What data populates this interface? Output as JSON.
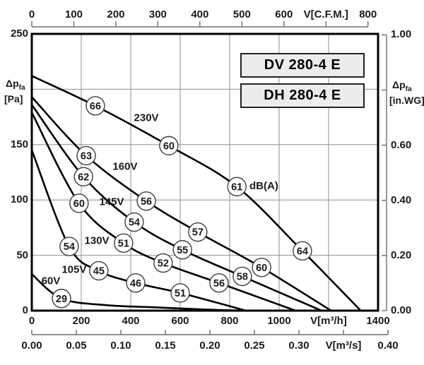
{
  "model_labels": [
    "DV 280-4 E",
    "DH 280-4 E"
  ],
  "colors": {
    "curve": "#000000",
    "grid": "#8f8f8f",
    "ruler": "#6e6e6e",
    "plot_border": "#000000",
    "badge_fill": "#ffffff",
    "badge_stroke": "#3c3c3c",
    "box_fill": "#ececec",
    "text": "#1a1a1a"
  },
  "chart_data": {
    "type": "line",
    "title": "",
    "x_axis_m3h": {
      "label": "V[m³/h]",
      "min": 0,
      "max": 1400,
      "grid_values": [
        200,
        400,
        600,
        800,
        1000,
        1200
      ],
      "ticks": [
        {
          "v": 0,
          "label": "0"
        },
        {
          "v": 200,
          "label": "200"
        },
        {
          "v": 400,
          "label": "400"
        },
        {
          "v": 600,
          "label": "600"
        },
        {
          "v": 800,
          "label": "800"
        },
        {
          "v": 1000,
          "label": "1000"
        },
        {
          "v": 1200,
          "label": "V[m³/h]"
        },
        {
          "v": 1400,
          "label": "1400"
        }
      ]
    },
    "x_axis_cfm": {
      "label": "V[C.F.M.]",
      "factor_to_m3h": 1.699,
      "ticks": [
        {
          "v": 0,
          "label": "0"
        },
        {
          "v": 100,
          "label": "100"
        },
        {
          "v": 200,
          "label": "200"
        },
        {
          "v": 300,
          "label": "300"
        },
        {
          "v": 400,
          "label": "400"
        },
        {
          "v": 500,
          "label": "500"
        },
        {
          "v": 600,
          "label": "600"
        },
        {
          "v": 700,
          "label": "V[C.F.M.]"
        },
        {
          "v": 800,
          "label": "800"
        }
      ]
    },
    "x_axis_m3s": {
      "label": "V[m³/s]",
      "factor_to_m3h": 3600,
      "ticks": [
        {
          "v": 0.0,
          "label": "0.00"
        },
        {
          "v": 0.05,
          "label": "0.05"
        },
        {
          "v": 0.1,
          "label": "0.10"
        },
        {
          "v": 0.15,
          "label": "0.15"
        },
        {
          "v": 0.2,
          "label": "0.20"
        },
        {
          "v": 0.25,
          "label": "0.25"
        },
        {
          "v": 0.3,
          "label": "0.30"
        },
        {
          "v": 0.35,
          "label": "V[m³/s]"
        },
        {
          "v": 0.4,
          "label": "0.40"
        }
      ]
    },
    "y_axis_pa": {
      "min": 0,
      "max": 250,
      "grid_values": [
        50,
        100,
        150,
        200
      ],
      "ticks": [
        {
          "v": 250,
          "label": "250"
        },
        {
          "v": 150,
          "label": "150"
        },
        {
          "v": 100,
          "label": "100"
        },
        {
          "v": 50,
          "label": "50"
        },
        {
          "v": 0,
          "label": "0"
        }
      ],
      "title": {
        "main": "Δp",
        "sub": "fa",
        "unit": "[Pa]",
        "at_value": 200
      }
    },
    "y_axis_inwg": {
      "factor_to_pa": 249.089,
      "ticks": [
        {
          "v": 1.0,
          "label": "1.00"
        },
        {
          "v": 0.8,
          "label": null
        },
        {
          "v": 0.6,
          "label": "0.60"
        },
        {
          "v": 0.4,
          "label": "0.40"
        },
        {
          "v": 0.2,
          "label": "0.20"
        },
        {
          "v": 0.0,
          "label": "0.00"
        }
      ],
      "title": {
        "main": "Δp",
        "sub": "fa",
        "unit": "[in.WG]",
        "at_value": 0.8
      }
    },
    "series": [
      {
        "name": "230V",
        "label_at": [
          463,
          174
        ],
        "points": [
          [
            0,
            212
          ],
          [
            257,
            185
          ],
          [
            554,
            149
          ],
          [
            829,
            112
          ],
          [
            1094,
            54
          ],
          [
            1330,
            0
          ]
        ],
        "db_points": [
          {
            "db": "66",
            "x": 257,
            "y": 185
          },
          {
            "db": "60",
            "x": 554,
            "y": 149
          },
          {
            "db": "61",
            "x": 829,
            "y": 112
          },
          {
            "db": "64",
            "x": 1094,
            "y": 54
          }
        ]
      },
      {
        "name": "160V",
        "label_at": [
          377,
          130
        ],
        "points": [
          [
            0,
            193
          ],
          [
            220,
            140
          ],
          [
            463,
            99
          ],
          [
            671,
            71
          ],
          [
            929,
            39
          ],
          [
            1210,
            0
          ]
        ],
        "db_points": [
          {
            "db": "63",
            "x": 220,
            "y": 140
          },
          {
            "db": "56",
            "x": 463,
            "y": 99
          },
          {
            "db": "57",
            "x": 671,
            "y": 71
          },
          {
            "db": "60",
            "x": 929,
            "y": 39
          }
        ]
      },
      {
        "name": "145V",
        "label_at": [
          323,
          98
        ],
        "points": [
          [
            0,
            186
          ],
          [
            209,
            121
          ],
          [
            414,
            80
          ],
          [
            609,
            55
          ],
          [
            851,
            31
          ],
          [
            1171,
            0
          ]
        ],
        "db_points": [
          {
            "db": "62",
            "x": 209,
            "y": 121
          },
          {
            "db": "54",
            "x": 414,
            "y": 80
          },
          {
            "db": "55",
            "x": 609,
            "y": 55
          },
          {
            "db": "58",
            "x": 851,
            "y": 31
          }
        ]
      },
      {
        "name": "130V",
        "label_at": [
          263,
          63
        ],
        "points": [
          [
            0,
            179
          ],
          [
            191,
            97
          ],
          [
            371,
            61
          ],
          [
            531,
            43
          ],
          [
            757,
            25
          ],
          [
            1066,
            0
          ]
        ],
        "db_points": [
          {
            "db": "60",
            "x": 191,
            "y": 97
          },
          {
            "db": "51",
            "x": 371,
            "y": 61
          },
          {
            "db": "52",
            "x": 531,
            "y": 43
          },
          {
            "db": "56",
            "x": 757,
            "y": 25
          }
        ]
      },
      {
        "name": "105V",
        "label_at": [
          171,
          37
        ],
        "points": [
          [
            0,
            145
          ],
          [
            151,
            58
          ],
          [
            271,
            36
          ],
          [
            420,
            25
          ],
          [
            600,
            16
          ],
          [
            866,
            0
          ]
        ],
        "db_points": [
          {
            "db": "54",
            "x": 151,
            "y": 58
          },
          {
            "db": "45",
            "x": 271,
            "y": 36
          },
          {
            "db": "46",
            "x": 420,
            "y": 25
          },
          {
            "db": "51",
            "x": 600,
            "y": 16
          }
        ]
      },
      {
        "name": "60V",
        "label_at": [
          77,
          27
        ],
        "points": [
          [
            0,
            33
          ],
          [
            120,
            11
          ],
          [
            300,
            5
          ],
          [
            500,
            3
          ],
          [
            700,
            1
          ],
          [
            870,
            0
          ]
        ],
        "db_points": [
          {
            "db": "29",
            "x": 120,
            "y": 11
          }
        ]
      }
    ],
    "annotations": [
      {
        "text": "dB(A)",
        "x": 880,
        "y": 112,
        "align": "left"
      }
    ]
  }
}
